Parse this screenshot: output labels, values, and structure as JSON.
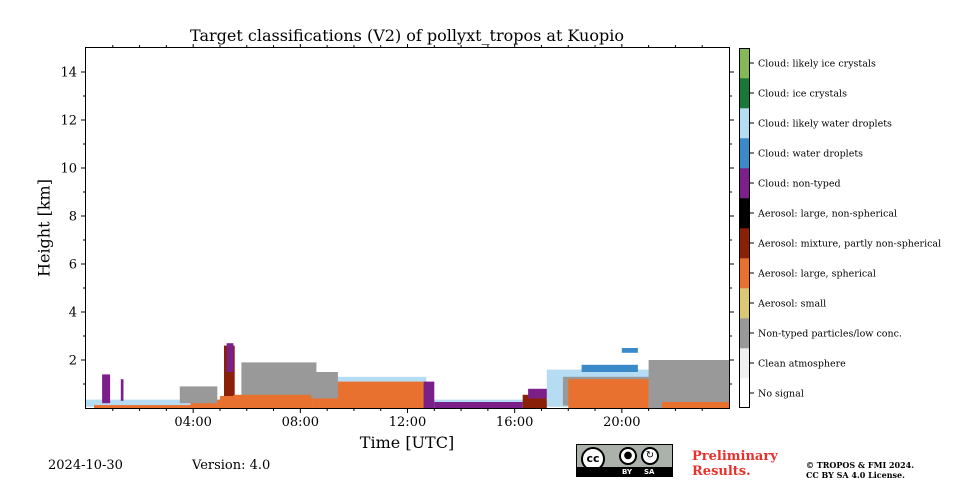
{
  "chart_data": {
    "type": "heatmap",
    "title": "Target classifications (V2) of pollyxt_tropos at Kuopio",
    "xlabel": "Time [UTC]",
    "ylabel": "Height [km]",
    "xlim": [
      0,
      24
    ],
    "ylim": [
      0,
      15
    ],
    "x_ticks": [
      {
        "value": 4,
        "label": "04:00"
      },
      {
        "value": 8,
        "label": "08:00"
      },
      {
        "value": 12,
        "label": "12:00"
      },
      {
        "value": 16,
        "label": "16:00"
      },
      {
        "value": 20,
        "label": "20:00"
      }
    ],
    "y_ticks": [
      {
        "value": 2,
        "label": "2"
      },
      {
        "value": 4,
        "label": "4"
      },
      {
        "value": 6,
        "label": "6"
      },
      {
        "value": 8,
        "label": "8"
      },
      {
        "value": 10,
        "label": "10"
      },
      {
        "value": 12,
        "label": "12"
      },
      {
        "value": 14,
        "label": "14"
      }
    ],
    "classes": [
      {
        "code": 0,
        "label": "No signal",
        "color": "#ffffff"
      },
      {
        "code": 1,
        "label": "Clean atmosphere",
        "color": "#f0f0f0"
      },
      {
        "code": 2,
        "label": "Non-typed particles/low conc.",
        "color": "#999999"
      },
      {
        "code": 3,
        "label": "Aerosol: small",
        "color": "#dcc872"
      },
      {
        "code": 4,
        "label": "Aerosol: large, spherical",
        "color": "#e8712f"
      },
      {
        "code": 5,
        "label": "Aerosol: mixture, partly non-spherical",
        "color": "#8a2008"
      },
      {
        "code": 6,
        "label": "Aerosol: large, non-spherical",
        "color": "#000000"
      },
      {
        "code": 7,
        "label": "Cloud: non-typed",
        "color": "#7c2089"
      },
      {
        "code": 8,
        "label": "Cloud: water droplets",
        "color": "#3a8ac9"
      },
      {
        "code": 9,
        "label": "Cloud: likely water droplets",
        "color": "#b6dcf4"
      },
      {
        "code": 10,
        "label": "Cloud: ice crystals",
        "color": "#177838"
      },
      {
        "code": 11,
        "label": "Cloud: likely ice crystals",
        "color": "#86b85a"
      }
    ],
    "regions": [
      {
        "class": 9,
        "t0": 0.0,
        "t1": 24.0,
        "h0": 0.05,
        "h1": 0.35
      },
      {
        "class": 4,
        "t0": 0.3,
        "t1": 3.9,
        "h0": 0.0,
        "h1": 0.12
      },
      {
        "class": 4,
        "t0": 3.9,
        "t1": 5.2,
        "h0": 0.0,
        "h1": 0.35
      },
      {
        "class": 7,
        "t0": 0.6,
        "t1": 0.9,
        "h0": 0.2,
        "h1": 1.4
      },
      {
        "class": 7,
        "t0": 1.3,
        "t1": 1.4,
        "h0": 0.3,
        "h1": 1.2
      },
      {
        "class": 2,
        "t0": 3.5,
        "t1": 4.9,
        "h0": 0.2,
        "h1": 0.9
      },
      {
        "class": 5,
        "t0": 5.15,
        "t1": 5.55,
        "h0": 0.3,
        "h1": 2.6
      },
      {
        "class": 7,
        "t0": 5.25,
        "t1": 5.5,
        "h0": 1.5,
        "h1": 2.7
      },
      {
        "class": 4,
        "t0": 5.0,
        "t1": 6.4,
        "h0": 0.0,
        "h1": 0.5
      },
      {
        "class": 2,
        "t0": 5.8,
        "t1": 8.6,
        "h0": 0.3,
        "h1": 1.9
      },
      {
        "class": 4,
        "t0": 5.5,
        "t1": 8.5,
        "h0": 0.0,
        "h1": 0.55
      },
      {
        "class": 4,
        "t0": 8.5,
        "t1": 12.7,
        "h0": 0.0,
        "h1": 1.15
      },
      {
        "class": 9,
        "t0": 8.5,
        "t1": 12.7,
        "h0": 1.1,
        "h1": 1.3
      },
      {
        "class": 2,
        "t0": 8.4,
        "t1": 9.4,
        "h0": 0.4,
        "h1": 1.5
      },
      {
        "class": 7,
        "t0": 12.6,
        "t1": 13.0,
        "h0": 0.0,
        "h1": 1.1
      },
      {
        "class": 7,
        "t0": 13.0,
        "t1": 16.3,
        "h0": 0.0,
        "h1": 0.25
      },
      {
        "class": 5,
        "t0": 16.3,
        "t1": 17.2,
        "h0": 0.0,
        "h1": 0.55
      },
      {
        "class": 7,
        "t0": 16.5,
        "t1": 17.6,
        "h0": 0.4,
        "h1": 0.8
      },
      {
        "class": 9,
        "t0": 17.2,
        "t1": 24.0,
        "h0": 0.3,
        "h1": 1.6
      },
      {
        "class": 2,
        "t0": 17.8,
        "t1": 24.0,
        "h0": 0.1,
        "h1": 1.3
      },
      {
        "class": 4,
        "t0": 18.0,
        "t1": 21.0,
        "h0": 0.0,
        "h1": 1.2
      },
      {
        "class": 2,
        "t0": 21.0,
        "t1": 24.0,
        "h0": 0.0,
        "h1": 2.0
      },
      {
        "class": 4,
        "t0": 21.5,
        "t1": 24.0,
        "h0": 0.0,
        "h1": 0.25
      },
      {
        "class": 8,
        "t0": 18.5,
        "t1": 20.6,
        "h0": 1.5,
        "h1": 1.8
      },
      {
        "class": 8,
        "t0": 20.0,
        "t1": 20.6,
        "h0": 2.3,
        "h1": 2.5
      }
    ]
  },
  "footer": {
    "date": "2024-10-30",
    "version": "Version: 4.0",
    "preliminary": "Preliminary Results.",
    "copyright_line1": "© TROPOS & FMI 2024.",
    "copyright_line2": "CC BY SA 4.0 License.",
    "badge": {
      "cc": "cc",
      "by": "BY",
      "sa": "SA"
    }
  }
}
